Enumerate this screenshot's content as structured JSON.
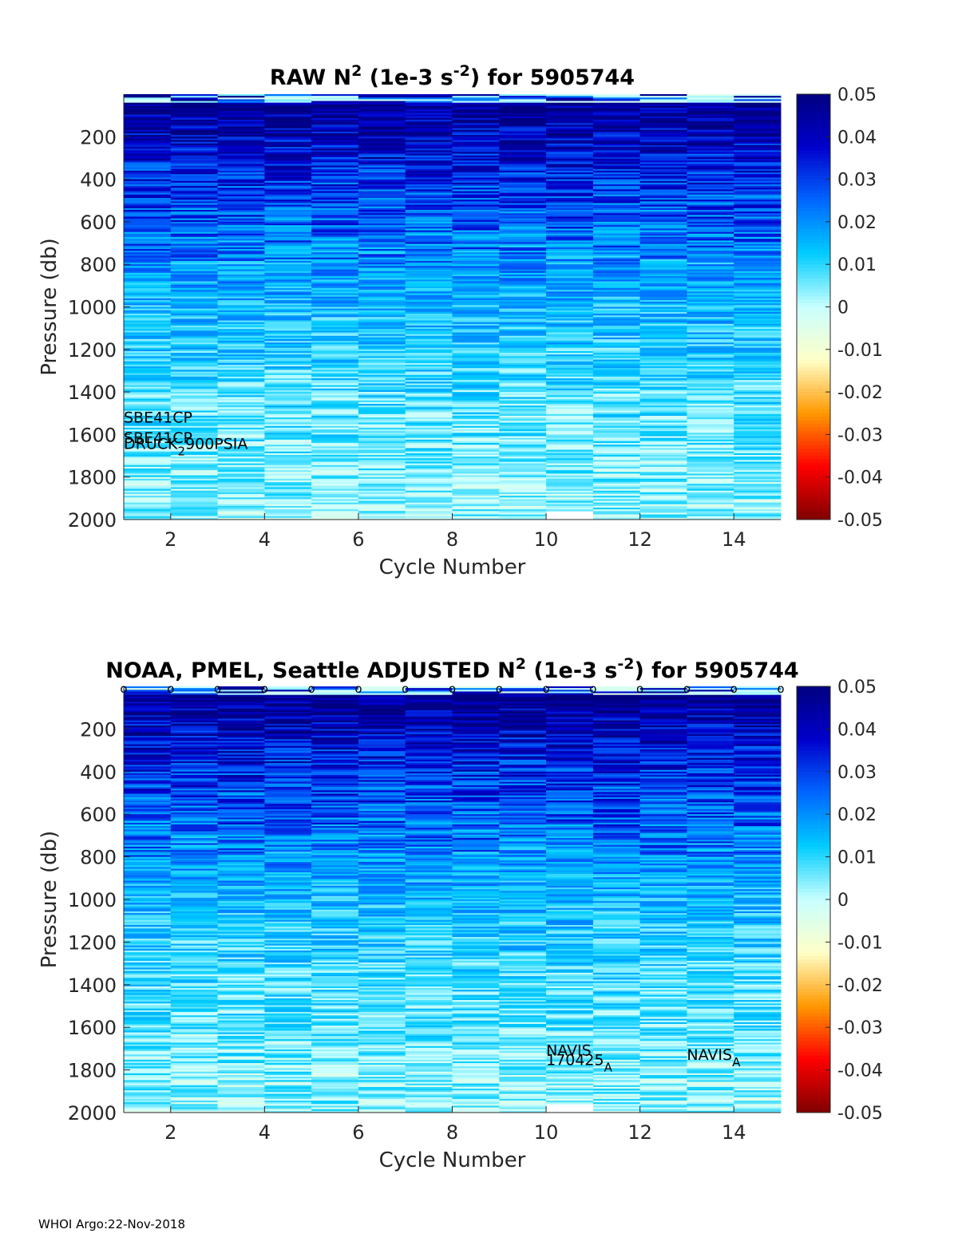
{
  "colors": {
    "colormap": [
      "#800000",
      "#ff0000",
      "#ff9900",
      "#ffffc8",
      "#c8ffff",
      "#00ccff",
      "#0066ff",
      "#0000cc",
      "#000080"
    ],
    "axis": "#262626",
    "frame": "#000000"
  },
  "panels": [
    {
      "id": "raw",
      "title_main": "RAW N",
      "title_sup": "2",
      "title_mid": " (1e-3 s",
      "title_sup2": "-2",
      "title_end": ") for 5905744",
      "annotations": [
        {
          "text": "SBE41CP",
          "sub": "",
          "rest": "",
          "x": 1,
          "y": 1545
        },
        {
          "text": "SBE41CP",
          "sub": "",
          "rest": "",
          "x": 1,
          "y": 1640
        },
        {
          "text": "DRUCK",
          "sub": "2",
          "rest": "900PSIA",
          "x": 1,
          "y": 1735
        }
      ],
      "markers": false
    },
    {
      "id": "adjusted",
      "title_main": "NOAA, PMEL, Seattle  ADJUSTED N",
      "title_sup": "2",
      "title_mid": " (1e-3 s",
      "title_sup2": "-2",
      "title_end": ") for 5905744",
      "annotations": [
        {
          "text": "NAVIS",
          "sub": "",
          "rest": "",
          "x": 10,
          "y": 1800
        },
        {
          "text": "170425",
          "sub": "A",
          "rest": "",
          "x": 10,
          "y": 1845
        },
        {
          "text": "NAVIS",
          "sub": "A",
          "rest": "",
          "x": 13,
          "y": 1820
        }
      ],
      "markers": true,
      "marker_symbol": "o"
    }
  ],
  "chart_data": {
    "type": "heatmap",
    "xlabel": "Cycle Number",
    "ylabel": "Pressure (db)",
    "xlim": [
      1,
      15
    ],
    "ylim": [
      0,
      2000
    ],
    "y_reversed": true,
    "xticks": [
      2,
      4,
      6,
      8,
      10,
      12,
      14
    ],
    "yticks": [
      200,
      400,
      600,
      800,
      1000,
      1200,
      1400,
      1600,
      1800,
      2000
    ],
    "cycles": [
      1,
      2,
      3,
      4,
      5,
      6,
      7,
      8,
      9,
      10,
      11,
      12,
      13,
      14
    ],
    "colorbar": {
      "clim": [
        -0.05,
        0.05
      ],
      "ticks": [
        0.05,
        0.04,
        0.03,
        0.02,
        0.01,
        0,
        -0.01,
        -0.02,
        -0.03,
        -0.04,
        -0.05
      ],
      "tick_labels": [
        "0.05",
        "0.04",
        "0.03",
        "0.02",
        "0.01",
        "0",
        "-0.01",
        "-0.02",
        "-0.03",
        "-0.04",
        "-0.05"
      ]
    },
    "profile_depths_db": [
      0,
      100,
      200,
      400,
      600,
      800,
      1000,
      1200,
      1400,
      1600,
      1800,
      2000
    ],
    "profile_mean_values": [
      0.05,
      0.045,
      0.04,
      0.032,
      0.026,
      0.02,
      0.014,
      0.011,
      0.008,
      0.006,
      0.004,
      0.003
    ],
    "max_depth_by_cycle": [
      2000,
      2000,
      2000,
      2000,
      2000,
      2000,
      2000,
      2000,
      2000,
      1960,
      2000,
      2000,
      2000,
      2000
    ]
  },
  "footer": "WHOI Argo:22-Nov-2018"
}
